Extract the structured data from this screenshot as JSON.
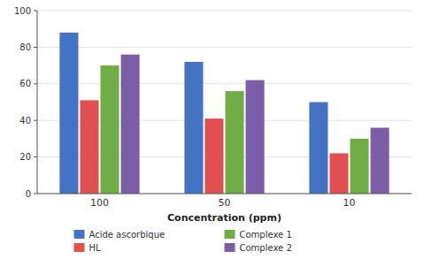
{
  "chart_data": {
    "type": "bar",
    "xlabel": "Concentration (ppm)",
    "categories": [
      "100",
      "50",
      "10"
    ],
    "series": [
      {
        "name": "Acide ascorbique",
        "color": "#4472C4",
        "values": [
          88,
          72,
          50
        ]
      },
      {
        "name": "HL",
        "color": "#E05050",
        "values": [
          51,
          41,
          22
        ]
      },
      {
        "name": "Complexe 1",
        "color": "#70AD47",
        "values": [
          70,
          56,
          30
        ]
      },
      {
        "name": "Complexe 2",
        "color": "#7B5EA7",
        "values": [
          76,
          62,
          36
        ]
      }
    ],
    "ylim": [
      0,
      100
    ],
    "yticks": [
      0,
      20,
      40,
      60,
      80,
      100
    ],
    "grid": true,
    "legend": "bottom"
  }
}
